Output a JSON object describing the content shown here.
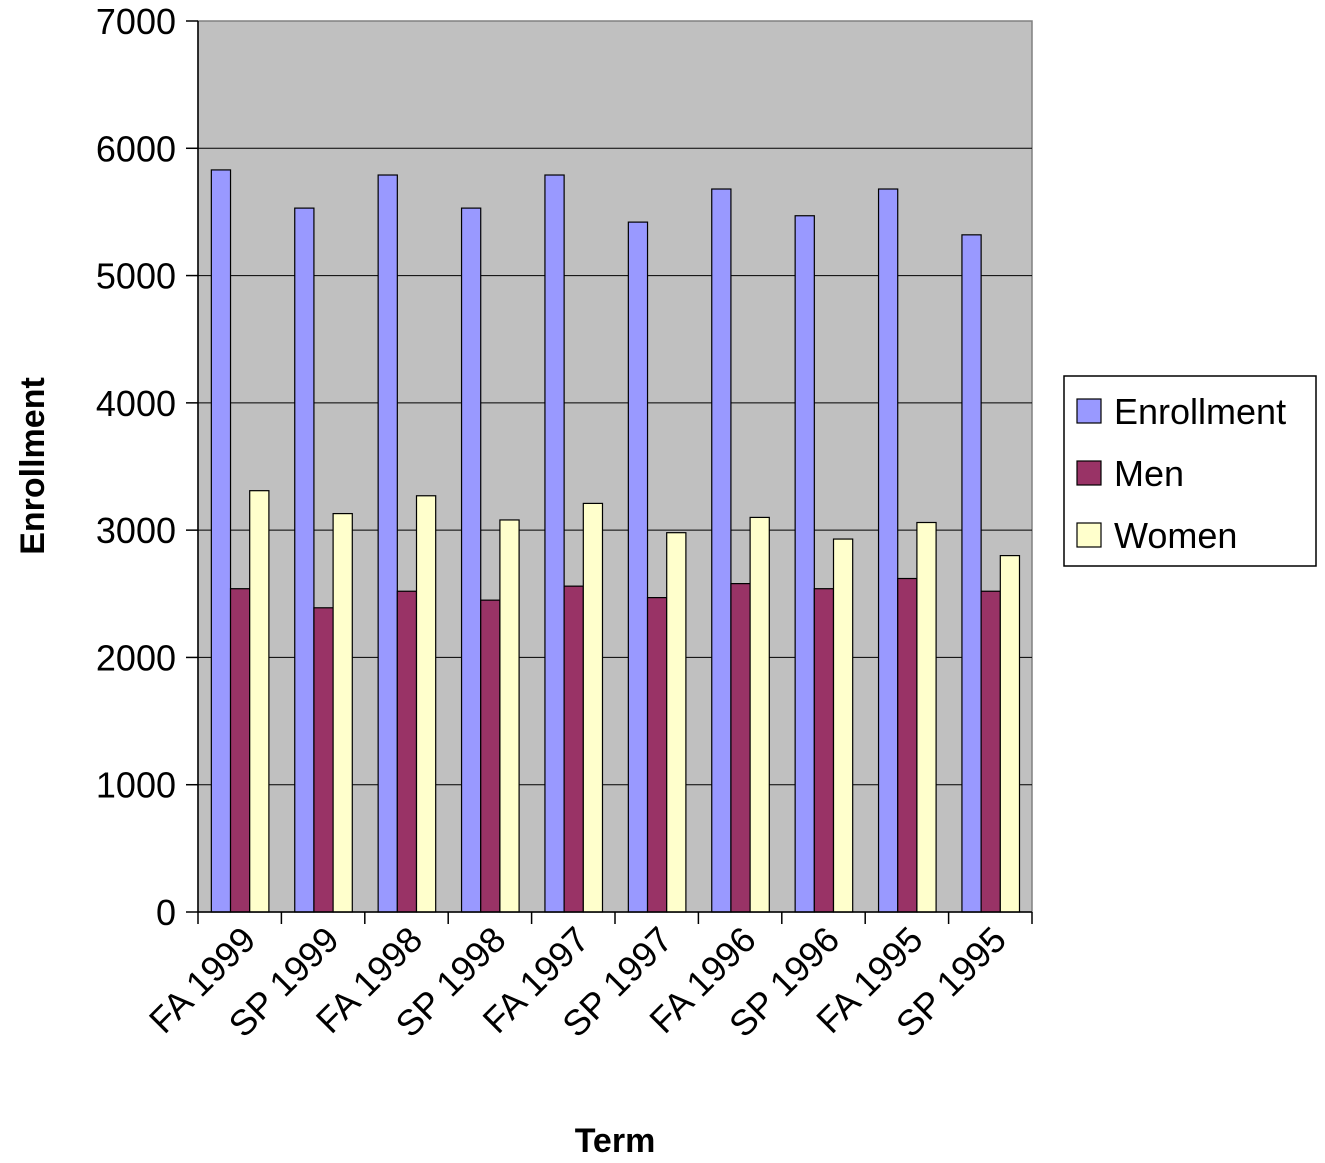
{
  "chart_data": {
    "type": "bar",
    "title": "",
    "xlabel": "Term",
    "ylabel": "Enrollment",
    "ylim": [
      0,
      7000
    ],
    "yticks": [
      0,
      1000,
      2000,
      3000,
      4000,
      5000,
      6000,
      7000
    ],
    "grid": true,
    "legend_position": "right",
    "categories": [
      "FA 1999",
      "SP 1999",
      "FA 1998",
      "SP 1998",
      "FA 1997",
      "SP 1997",
      "FA 1996",
      "SP 1996",
      "FA 1995",
      "SP 1995"
    ],
    "series": [
      {
        "name": "Enrollment",
        "color": "#9999ff",
        "values": [
          5830,
          5530,
          5790,
          5530,
          5790,
          5420,
          5680,
          5470,
          5680,
          5320
        ]
      },
      {
        "name": "Men",
        "color": "#993366",
        "values": [
          2540,
          2390,
          2520,
          2450,
          2560,
          2470,
          2580,
          2540,
          2620,
          2520
        ]
      },
      {
        "name": "Women",
        "color": "#ffffcc",
        "values": [
          3310,
          3130,
          3270,
          3080,
          3210,
          2980,
          3100,
          2930,
          3060,
          2800
        ]
      }
    ],
    "plot_background": "#c0c0c0"
  }
}
